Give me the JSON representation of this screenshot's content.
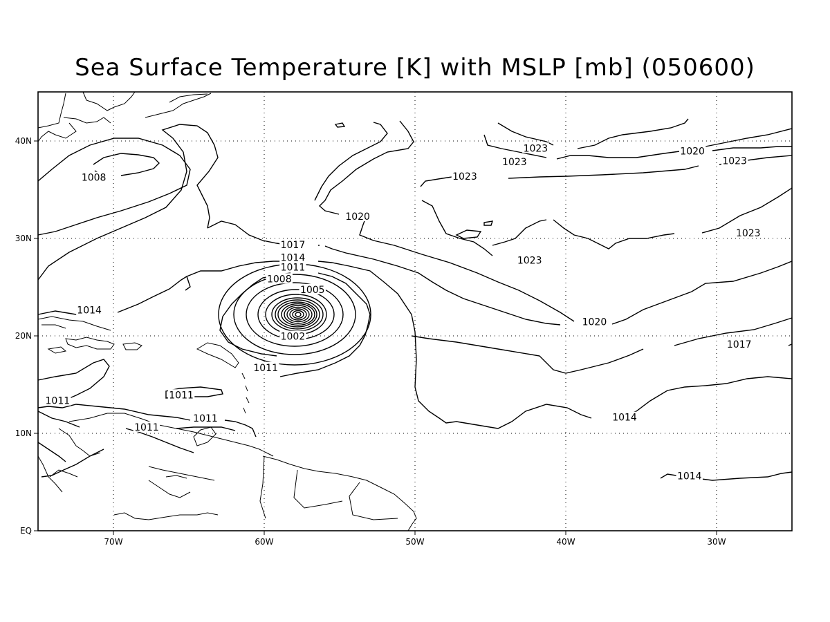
{
  "title": "Sea Surface Temperature [K] with MSLP [mb] (050600)",
  "axes": {
    "x_ticks": [
      "70W",
      "60W",
      "50W",
      "40W",
      "30W"
    ],
    "y_ticks": [
      "EQ",
      "10N",
      "20N",
      "30N",
      "40N"
    ],
    "lon_range": [
      -75,
      -25
    ],
    "lat_range": [
      0,
      45
    ],
    "grid": true
  },
  "contour_labels": [
    {
      "text": "1008",
      "lon": -71.3,
      "lat": 36.1
    },
    {
      "text": "1020",
      "lon": -53.8,
      "lat": 32.1
    },
    {
      "text": "1023",
      "lon": -42.0,
      "lat": 39.1
    },
    {
      "text": "1023",
      "lon": -43.4,
      "lat": 37.7
    },
    {
      "text": "1023",
      "lon": -46.7,
      "lat": 36.2
    },
    {
      "text": "1020",
      "lon": -31.6,
      "lat": 38.8
    },
    {
      "text": "1023",
      "lon": -28.8,
      "lat": 37.8
    },
    {
      "text": "1023",
      "lon": -27.9,
      "lat": 30.4
    },
    {
      "text": "1023",
      "lon": -42.4,
      "lat": 27.6
    },
    {
      "text": "1017",
      "lon": -58.1,
      "lat": 29.2
    },
    {
      "text": "1014",
      "lon": -58.1,
      "lat": 27.9
    },
    {
      "text": "1011",
      "lon": -58.1,
      "lat": 26.9
    },
    {
      "text": "1008",
      "lon": -59.0,
      "lat": 25.7
    },
    {
      "text": "1005",
      "lon": -56.8,
      "lat": 24.6
    },
    {
      "text": "1002",
      "lon": -58.1,
      "lat": 19.8
    },
    {
      "text": "1014",
      "lon": -71.6,
      "lat": 22.5
    },
    {
      "text": "1020",
      "lon": -38.1,
      "lat": 21.3
    },
    {
      "text": "1017",
      "lon": -28.5,
      "lat": 19.0
    },
    {
      "text": "1011",
      "lon": -59.9,
      "lat": 16.6
    },
    {
      "text": "1011",
      "lon": -73.7,
      "lat": 13.2
    },
    {
      "text": "1011",
      "lon": -65.5,
      "lat": 13.8
    },
    {
      "text": "1011",
      "lon": -63.9,
      "lat": 11.4
    },
    {
      "text": "1011",
      "lon": -67.8,
      "lat": 10.5
    },
    {
      "text": "1014",
      "lon": -36.1,
      "lat": 11.5
    },
    {
      "text": "1014",
      "lon": -31.8,
      "lat": 5.5
    }
  ],
  "cyclone_center": {
    "lon": -57.5,
    "lat": 22.3,
    "ring_count": 14
  }
}
